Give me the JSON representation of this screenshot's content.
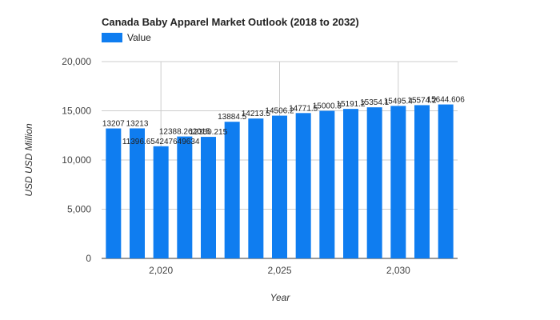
{
  "chart_data": {
    "type": "bar",
    "title": "Canada Baby Apparel Market Outlook (2018 to 2032)",
    "xlabel": "Year",
    "ylabel": "USD USD Million",
    "series": [
      {
        "name": "Value",
        "color": "#0f7df0",
        "x": [
          2018,
          2019,
          2020,
          2021,
          2022,
          2023,
          2024,
          2025,
          2026,
          2027,
          2028,
          2029,
          2030,
          2031,
          2032
        ],
        "values": [
          13207,
          13213,
          11396.654247649634,
          12388.262015,
          12350.215,
          13884.51,
          14213.5,
          14506.2,
          14771.5,
          15000.3,
          15191.2,
          15354.1,
          15495.4,
          15574.2,
          15644.606
        ],
        "labels": [
          "13207",
          "13213",
          "11396.654247649634",
          "12388.262015",
          "12350.215",
          "13884.5",
          "14213.5",
          "14506.2",
          "14771.5",
          "15000.3",
          "15191.2",
          "15354.1",
          "15495.4",
          "15574.2",
          "15644.606"
        ]
      }
    ],
    "xticks": [
      2020,
      2025,
      2030
    ],
    "xtick_labels": [
      "2,020",
      "2,025",
      "2,030"
    ],
    "yticks": [
      0,
      5000,
      10000,
      15000,
      20000
    ],
    "ytick_labels": [
      "0",
      "5,000",
      "10,000",
      "15,000",
      "20,000"
    ],
    "ylim": [
      0,
      20000
    ],
    "grid": true,
    "legend": "top-left"
  }
}
